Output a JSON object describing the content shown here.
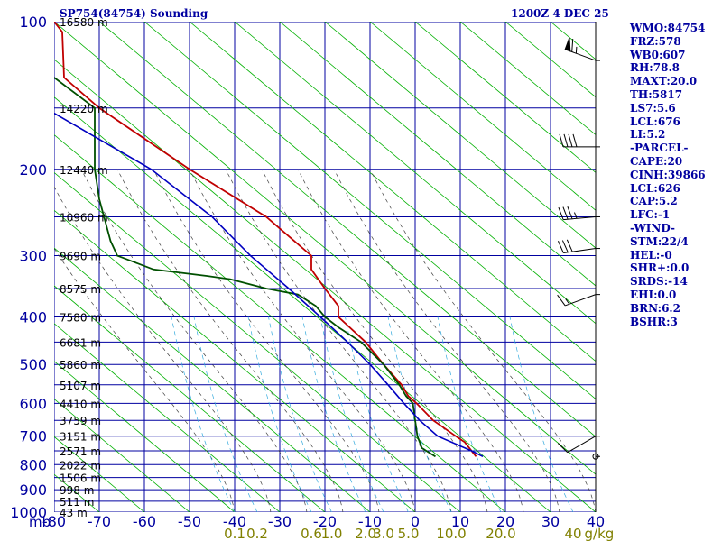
{
  "header": {
    "station_title": "SP754(84754) Sounding",
    "time_title": "1200Z  4 DEC 25"
  },
  "indices": [
    "WMO:84754",
    "FRZ:578",
    "WB0:607",
    "RH:78.8",
    "MAXT:20.0",
    "TH:5817",
    "LS7:5.6",
    "LCL:676",
    "LI:5.2",
    "-PARCEL-",
    "CAPE:20",
    "CINH:39866",
    "LCL:626",
    "CAP:5.2",
    "LFC:-1",
    "-WIND-",
    "STM:22/4",
    "HEL:-0",
    "SHR+:0.0",
    "SRDS:-14",
    "EHI:0.0",
    "BRN:6.2",
    "BSHR:3"
  ],
  "colors": {
    "background": "#ffffff",
    "isobar": "#0000a0",
    "dry_adiabat": "#00b000",
    "moist_adiabat": "#404040",
    "mixing_ratio": "#33aadd",
    "temperature": "#c00000",
    "dewpoint": "#005000",
    "parcel": "#0000c0",
    "text": "#0000a0",
    "mixing_label": "#808000"
  },
  "chart_data": {
    "type": "line",
    "title": "SP754(84754) Sounding",
    "xlabel": "",
    "ylabel": "",
    "xlim": [
      -80,
      40
    ],
    "ylim": [
      1000,
      100
    ],
    "pressure_unit": "mb",
    "pressure_ticks": [
      100,
      200,
      300,
      400,
      500,
      600,
      700,
      800,
      900,
      1000
    ],
    "isobars": [
      100,
      150,
      200,
      250,
      300,
      350,
      400,
      450,
      500,
      550,
      600,
      650,
      700,
      750,
      800,
      850,
      900,
      950,
      1000
    ],
    "temperature_ticks": [
      -80,
      -70,
      -60,
      -50,
      -40,
      -30,
      -20,
      -10,
      0,
      10,
      20,
      30,
      40
    ],
    "mixing_ratio_unit": "g/kg",
    "mixing_ratio_labels": [
      {
        "label": "0.1",
        "x": -40
      },
      {
        "label": "0.2",
        "x": -35
      },
      {
        "label": "0.6",
        "x": -23
      },
      {
        "label": "1.0",
        "x": -18.5
      },
      {
        "label": "2.0",
        "x": -11
      },
      {
        "label": "3.0",
        "x": -7
      },
      {
        "label": "5.0",
        "x": -1.5
      },
      {
        "label": "10.0",
        "x": 8
      },
      {
        "label": "20.0",
        "x": 19
      },
      {
        "label": "40",
        "x": 35
      }
    ],
    "heights": [
      {
        "p": 100,
        "label": "16580 m"
      },
      {
        "p": 150,
        "label": "14220 m"
      },
      {
        "p": 200,
        "label": "12440 m"
      },
      {
        "p": 250,
        "label": "10960 m"
      },
      {
        "p": 300,
        "label": "9690 m"
      },
      {
        "p": 350,
        "label": "8575 m"
      },
      {
        "p": 400,
        "label": "7580 m"
      },
      {
        "p": 450,
        "label": "6681 m"
      },
      {
        "p": 500,
        "label": "5860 m"
      },
      {
        "p": 550,
        "label": "5107 m"
      },
      {
        "p": 600,
        "label": "4410 m"
      },
      {
        "p": 650,
        "label": "3759 m"
      },
      {
        "p": 700,
        "label": "3151 m"
      },
      {
        "p": 750,
        "label": "2571 m"
      },
      {
        "p": 800,
        "label": "2022 m"
      },
      {
        "p": 850,
        "label": "1506 m"
      },
      {
        "p": 900,
        "label": "998 m"
      },
      {
        "p": 950,
        "label": "511 m"
      },
      {
        "p": 1000,
        "label": "43 m"
      }
    ],
    "series": [
      {
        "key": "temperature",
        "points": [
          {
            "p": 100,
            "x": -80
          },
          {
            "p": 105,
            "x": -78.2
          },
          {
            "p": 130,
            "x": -77.8
          },
          {
            "p": 150,
            "x": -70
          },
          {
            "p": 200,
            "x": -50
          },
          {
            "p": 250,
            "x": -33
          },
          {
            "p": 300,
            "x": -23
          },
          {
            "p": 320,
            "x": -23
          },
          {
            "p": 350,
            "x": -20
          },
          {
            "p": 380,
            "x": -17
          },
          {
            "p": 390,
            "x": -17
          },
          {
            "p": 400,
            "x": -17
          },
          {
            "p": 450,
            "x": -11
          },
          {
            "p": 500,
            "x": -7
          },
          {
            "p": 550,
            "x": -3
          },
          {
            "p": 580,
            "x": -1.5
          },
          {
            "p": 600,
            "x": 0.3
          },
          {
            "p": 650,
            "x": 4
          },
          {
            "p": 700,
            "x": 9
          },
          {
            "p": 720,
            "x": 11
          },
          {
            "p": 760,
            "x": 13
          },
          {
            "p": 770,
            "x": 13.5
          }
        ]
      },
      {
        "key": "dewpoint",
        "points": [
          {
            "p": 130,
            "x": -80
          },
          {
            "p": 150,
            "x": -71
          },
          {
            "p": 160,
            "x": -71
          },
          {
            "p": 200,
            "x": -71
          },
          {
            "p": 230,
            "x": -70
          },
          {
            "p": 280,
            "x": -67.5
          },
          {
            "p": 300,
            "x": -66
          },
          {
            "p": 320,
            "x": -58
          },
          {
            "p": 330,
            "x": -46
          },
          {
            "p": 335,
            "x": -41
          },
          {
            "p": 350,
            "x": -33
          },
          {
            "p": 360,
            "x": -26
          },
          {
            "p": 380,
            "x": -22
          },
          {
            "p": 400,
            "x": -20
          },
          {
            "p": 420,
            "x": -17
          },
          {
            "p": 450,
            "x": -12
          },
          {
            "p": 500,
            "x": -7
          },
          {
            "p": 550,
            "x": -3.5
          },
          {
            "p": 580,
            "x": -2
          },
          {
            "p": 600,
            "x": -0.5
          },
          {
            "p": 650,
            "x": 0
          },
          {
            "p": 700,
            "x": 0.5
          },
          {
            "p": 740,
            "x": 1.5
          },
          {
            "p": 760,
            "x": 3.5
          },
          {
            "p": 770,
            "x": 4.5
          }
        ]
      },
      {
        "key": "parcel",
        "points": [
          {
            "p": 150,
            "x": -82
          },
          {
            "p": 200,
            "x": -58.5
          },
          {
            "p": 250,
            "x": -45
          },
          {
            "p": 300,
            "x": -36.5
          },
          {
            "p": 350,
            "x": -28
          },
          {
            "p": 400,
            "x": -21
          },
          {
            "p": 450,
            "x": -15
          },
          {
            "p": 500,
            "x": -10
          },
          {
            "p": 550,
            "x": -6
          },
          {
            "p": 600,
            "x": -2.5
          },
          {
            "p": 650,
            "x": 1
          },
          {
            "p": 700,
            "x": 5
          },
          {
            "p": 750,
            "x": 12.5
          },
          {
            "p": 770,
            "x": 15
          }
        ]
      }
    ],
    "winds": [
      {
        "p": 120,
        "dir": 290,
        "kt": 65
      },
      {
        "p": 180,
        "dir": 270,
        "kt": 40
      },
      {
        "p": 250,
        "dir": 265,
        "kt": 35
      },
      {
        "p": 290,
        "dir": 262,
        "kt": 30
      },
      {
        "p": 360,
        "dir": 250,
        "kt": 15
      },
      {
        "p": 700,
        "dir": 240,
        "kt": 10
      },
      {
        "p": 770,
        "dir": 0,
        "kt": 0
      }
    ],
    "grid": true
  }
}
